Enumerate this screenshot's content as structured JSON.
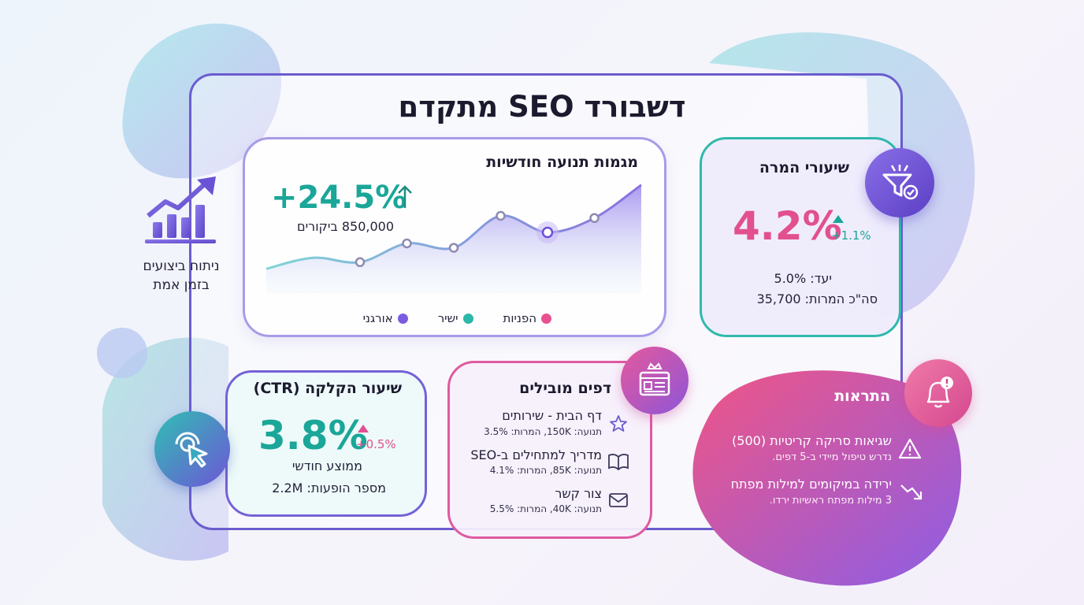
{
  "title": "דשבורד SEO מתקדם",
  "side": {
    "line1": "ניתוח ביצועים",
    "line2": "בזמן אמת"
  },
  "traffic": {
    "title": "מגמות תנועה חודשיות",
    "change": "+24.5%",
    "visitors": "850,000 ביקורים",
    "legend": [
      {
        "label": "הפניות",
        "color": "#e8508f"
      },
      {
        "label": "ישיר",
        "color": "#2bb8a8"
      },
      {
        "label": "אורגני",
        "color": "#7a5ce0"
      }
    ],
    "chart_data": {
      "type": "area",
      "title": "מגמות תנועה חודשיות",
      "x": [
        1,
        2,
        3,
        4,
        5,
        6,
        7,
        8,
        9
      ],
      "values": [
        22,
        32,
        28,
        45,
        41,
        70,
        55,
        68,
        98
      ],
      "marked_points": [
        2,
        3,
        4,
        5,
        6,
        7
      ],
      "highlight_index": 6,
      "ylim": [
        0,
        100
      ],
      "grid": false,
      "legend": "bottom"
    }
  },
  "conversion": {
    "title": "שיעורי המרה",
    "value": "4.2%",
    "delta": "+1.1%",
    "target": "יעד: 5.0%",
    "total": "סה\"כ המרות: 35,700"
  },
  "ctr": {
    "title": "שיעור הקלקה (CTR)",
    "value": "3.8%",
    "delta": "+0.5%",
    "sub": "ממוצע חודשי",
    "impressions": "מספר הופעות: 2.2M"
  },
  "pages": {
    "title": "דפים מובילים",
    "items": [
      {
        "name": "דף הבית - שירותים",
        "meta": "תנועה: 150K, המרות: 3.5%",
        "icon": "star-icon"
      },
      {
        "name": "מדריך למתחילים ב-SEO",
        "meta": "תנועה: 85K, המרות: 4.1%",
        "icon": "book-icon"
      },
      {
        "name": "צור קשר",
        "meta": "תנועה: 40K, המרות: 5.5%",
        "icon": "mail-icon"
      }
    ]
  },
  "alerts": {
    "title": "התראות",
    "items": [
      {
        "title": "שגיאות סריקה קריטיות (500)",
        "sub": "נדרש טיפול מיידי ב-5 דפים.",
        "icon": "warning-icon"
      },
      {
        "title": "ירידה במיקומים למילות מפתח",
        "sub": "3 מילות מפתח ראשיות ירדו.",
        "icon": "trend-down-icon"
      }
    ]
  },
  "colors": {
    "accent": "#6b5ccf",
    "teal": "#1aa698",
    "pink": "#e8508f",
    "purple": "#7a5ce0"
  }
}
